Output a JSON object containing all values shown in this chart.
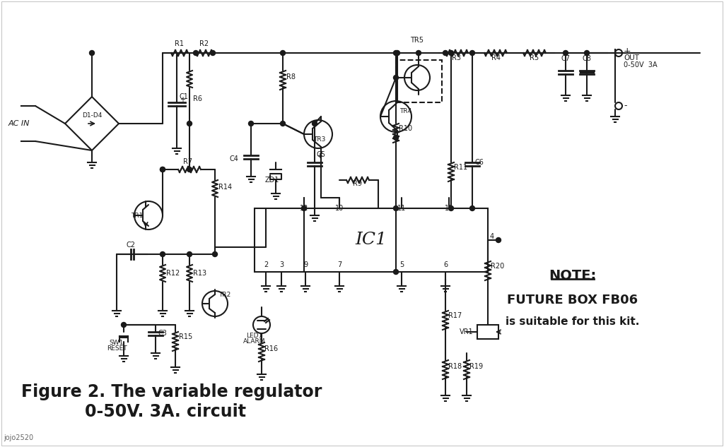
{
  "bg_color": "#ffffff",
  "line_color": "#1a1a1a",
  "title_line1": "Figure 2. The variable regulator",
  "title_line2": "0-50V. 3A. circuit",
  "note_line1": "NOTE:",
  "note_line2": "FUTURE BOX FB06",
  "note_line3": "is suitable for this kit.",
  "watermark": "jojo2520",
  "ac_in": "AC IN",
  "d1d4": "D1-D4",
  "out_label": "OUT",
  "out_range": "0-50V  3A",
  "plus": "+",
  "minus": "-",
  "ic1_label": "IC1",
  "lw": 1.5
}
